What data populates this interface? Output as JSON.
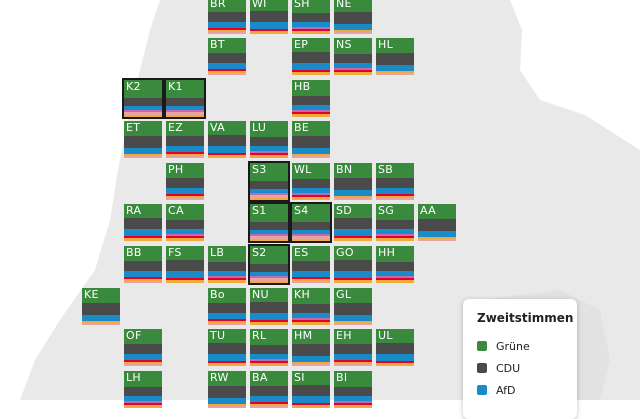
{
  "party_colors": {
    "gruene": "#3a8a3d",
    "cdu": "#4a4a4a",
    "afd": "#1a8bc9",
    "spd": "#e3002c",
    "fdp": "#f0a93b",
    "linke": "#c06ab0",
    "other": "#e8a3a3"
  },
  "legend": {
    "title": "Zweitstimmen",
    "items": [
      {
        "label": "Grüne",
        "color": "#3a8a3d"
      },
      {
        "label": "CDU",
        "color": "#4a4a4a"
      },
      {
        "label": "AfD",
        "color": "#1a8bc9"
      }
    ]
  },
  "districts": [
    {
      "code": "BR"
    },
    {
      "code": "WI"
    },
    {
      "code": "SH"
    },
    {
      "code": "NE"
    },
    {
      "code": "BT"
    },
    {
      "code": "EP"
    },
    {
      "code": "NS"
    },
    {
      "code": "HL"
    },
    {
      "code": "K2",
      "selected": true
    },
    {
      "code": "K1",
      "selected": true
    },
    {
      "code": "HB"
    },
    {
      "code": "ET"
    },
    {
      "code": "EZ"
    },
    {
      "code": "VA"
    },
    {
      "code": "LU"
    },
    {
      "code": "BE"
    },
    {
      "code": "PH"
    },
    {
      "code": "S3",
      "selected": true
    },
    {
      "code": "WL"
    },
    {
      "code": "BN"
    },
    {
      "code": "SB"
    },
    {
      "code": "RA"
    },
    {
      "code": "CA"
    },
    {
      "code": "S1",
      "selected": true
    },
    {
      "code": "S4",
      "selected": true
    },
    {
      "code": "SD"
    },
    {
      "code": "SG"
    },
    {
      "code": "AA"
    },
    {
      "code": "BB"
    },
    {
      "code": "FS"
    },
    {
      "code": "LB"
    },
    {
      "code": "S2",
      "selected": true
    },
    {
      "code": "ES"
    },
    {
      "code": "GO"
    },
    {
      "code": "HH"
    },
    {
      "code": "KE"
    },
    {
      "code": "Bo"
    },
    {
      "code": "NU"
    },
    {
      "code": "KH"
    },
    {
      "code": "GL"
    },
    {
      "code": "OF"
    },
    {
      "code": "TU"
    },
    {
      "code": "RL"
    },
    {
      "code": "HM"
    },
    {
      "code": "EH"
    },
    {
      "code": "UL"
    },
    {
      "code": "LH"
    },
    {
      "code": "RW"
    },
    {
      "code": "BA"
    },
    {
      "code": "SI"
    },
    {
      "code": "BI"
    }
  ]
}
